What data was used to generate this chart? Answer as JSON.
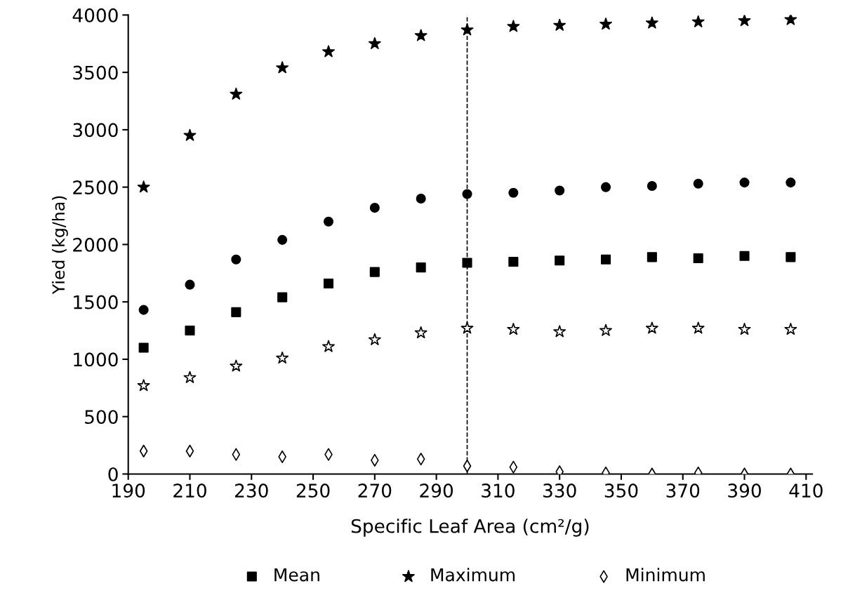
{
  "chart_data": {
    "type": "scatter",
    "xlabel": "Specific Leaf Area (cm²/g)",
    "ylabel": "Yied (kg/ha)",
    "x": [
      195,
      210,
      225,
      240,
      255,
      270,
      285,
      300,
      315,
      330,
      345,
      360,
      375,
      390,
      405
    ],
    "xlim": [
      190,
      412
    ],
    "xticks": [
      190,
      210,
      230,
      250,
      270,
      290,
      310,
      330,
      350,
      370,
      390,
      410
    ],
    "ylim": [
      0,
      4000
    ],
    "yticks": [
      0,
      500,
      1000,
      1500,
      2000,
      2500,
      3000,
      3500,
      4000
    ],
    "grid": false,
    "legend": "bottom",
    "ref_lines": [
      {
        "axis": "x",
        "value": 300,
        "line_style": "dashed",
        "color": "#000000"
      }
    ],
    "series": [
      {
        "name": "Mean",
        "color": "#000000",
        "marker": "square",
        "values": [
          1100,
          1250,
          1410,
          1540,
          1660,
          1760,
          1800,
          1840,
          1850,
          1860,
          1870,
          1890,
          1880,
          1900,
          1890
        ]
      },
      {
        "name": "Maximum",
        "color": "#000000",
        "marker": "star",
        "values": [
          2500,
          2950,
          3310,
          3540,
          3680,
          3750,
          3820,
          3870,
          3900,
          3910,
          3920,
          3930,
          3940,
          3950,
          3960
        ]
      },
      {
        "name": "Minimum",
        "color": "#000000",
        "marker": "diamond",
        "values": [
          200,
          200,
          170,
          150,
          170,
          120,
          130,
          70,
          60,
          20,
          10,
          0,
          10,
          0,
          0
        ]
      },
      {
        "color": "#000000",
        "marker": "circle",
        "values": [
          1430,
          1650,
          1870,
          2040,
          2200,
          2320,
          2400,
          2440,
          2450,
          2470,
          2500,
          2510,
          2530,
          2540,
          2540
        ]
      },
      {
        "color": "#000000",
        "marker": "star",
        "values": [
          770,
          840,
          940,
          1010,
          1110,
          1170,
          1230,
          1270,
          1260,
          1240,
          1250,
          1270,
          1270,
          1260,
          1260
        ]
      }
    ]
  }
}
